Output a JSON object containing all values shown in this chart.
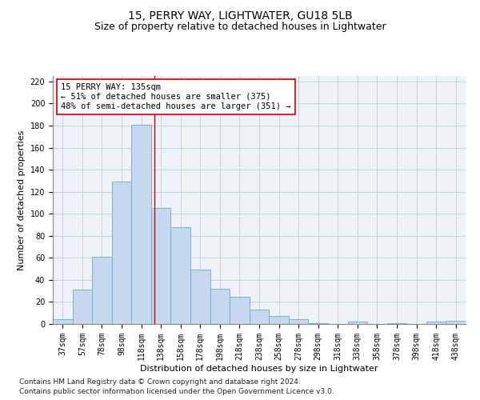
{
  "title1": "15, PERRY WAY, LIGHTWATER, GU18 5LB",
  "title2": "Size of property relative to detached houses in Lightwater",
  "xlabel": "Distribution of detached houses by size in Lightwater",
  "ylabel": "Number of detached properties",
  "bar_labels": [
    "37sqm",
    "57sqm",
    "78sqm",
    "98sqm",
    "118sqm",
    "138sqm",
    "158sqm",
    "178sqm",
    "198sqm",
    "218sqm",
    "238sqm",
    "258sqm",
    "278sqm",
    "298sqm",
    "318sqm",
    "338sqm",
    "358sqm",
    "378sqm",
    "398sqm",
    "418sqm",
    "438sqm"
  ],
  "bar_heights": [
    4,
    31,
    61,
    129,
    181,
    105,
    88,
    49,
    32,
    25,
    13,
    7,
    4,
    1,
    0,
    2,
    0,
    1,
    0,
    2,
    3
  ],
  "bar_color": "#c5d8ee",
  "bar_edge_color": "#6aaad4",
  "vline_x_index": 4.65,
  "vline_color": "#cc0000",
  "annotation_text": "15 PERRY WAY: 135sqm\n← 51% of detached houses are smaller (375)\n48% of semi-detached houses are larger (351) →",
  "annotation_box_edge": "#cc0000",
  "annotation_fontsize": 7.5,
  "ylim": [
    0,
    225
  ],
  "yticks": [
    0,
    20,
    40,
    60,
    80,
    100,
    120,
    140,
    160,
    180,
    200,
    220
  ],
  "grid_color": "#c8cfe0",
  "background_color": "#eef2f9",
  "footer1": "Contains HM Land Registry data © Crown copyright and database right 2024.",
  "footer2": "Contains public sector information licensed under the Open Government Licence v3.0.",
  "title1_fontsize": 10,
  "title2_fontsize": 9,
  "xlabel_fontsize": 8,
  "ylabel_fontsize": 8,
  "tick_fontsize": 7,
  "footer_fontsize": 6.5
}
